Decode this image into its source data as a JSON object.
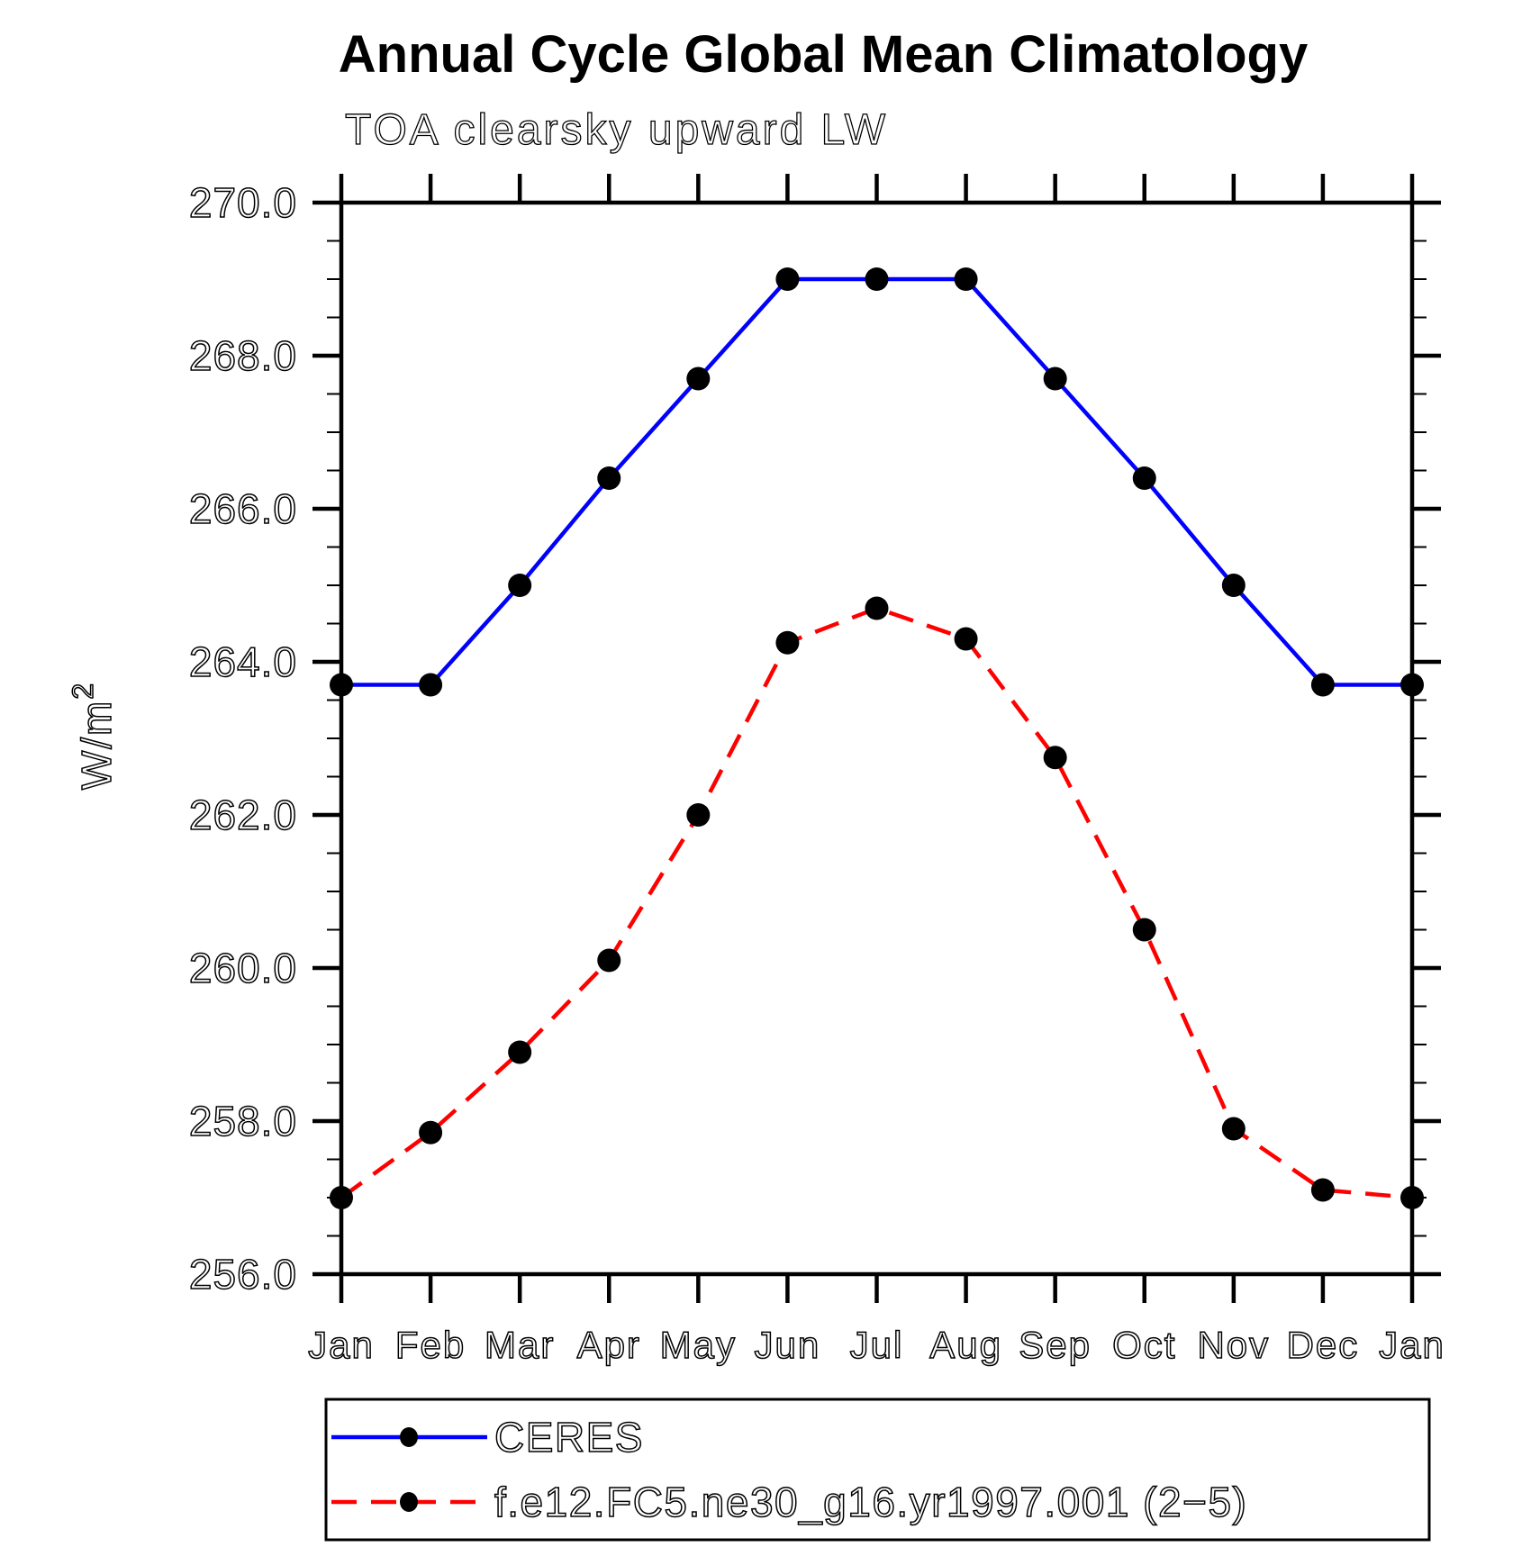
{
  "page": {
    "background": "#ffffff",
    "axis_color": "#000000",
    "marker_color": "#000000"
  },
  "chart_data": {
    "type": "line",
    "title": "Annual Cycle Global Mean Climatology",
    "subtitle": "TOA clearsky upward LW",
    "ylabel": "W/m²",
    "ylabel_base": "W/m",
    "ylabel_exp": "2",
    "ylim": [
      256.0,
      270.0
    ],
    "ytick_step": 2.0,
    "yminor_tick_step": 0.5,
    "ytick_labels": [
      "270.0",
      "268.0",
      "266.0",
      "264.0",
      "262.0",
      "260.0",
      "258.0",
      "256.0"
    ],
    "grid": false,
    "legend_position": "bottom",
    "x": [
      "Jan",
      "Feb",
      "Mar",
      "Apr",
      "May",
      "Jun",
      "Jul",
      "Aug",
      "Sep",
      "Oct",
      "Nov",
      "Dec",
      "Jan"
    ],
    "series": [
      {
        "name": "CERES",
        "color": "#0000ff",
        "line_style": "solid",
        "marker": "filled-circle",
        "values": [
          263.7,
          263.7,
          265.0,
          266.4,
          267.7,
          269.0,
          269.0,
          269.0,
          267.7,
          266.4,
          265.0,
          263.7,
          263.7
        ]
      },
      {
        "name": "f.e12.FC5.ne30_g16.yr1997.001 (2−5)",
        "color": "#ff0000",
        "line_style": "dashed",
        "marker": "filled-circle",
        "values": [
          257.0,
          257.85,
          258.9,
          260.1,
          262.0,
          264.25,
          264.7,
          264.3,
          262.75,
          260.5,
          257.9,
          257.1,
          257.0
        ]
      }
    ]
  }
}
